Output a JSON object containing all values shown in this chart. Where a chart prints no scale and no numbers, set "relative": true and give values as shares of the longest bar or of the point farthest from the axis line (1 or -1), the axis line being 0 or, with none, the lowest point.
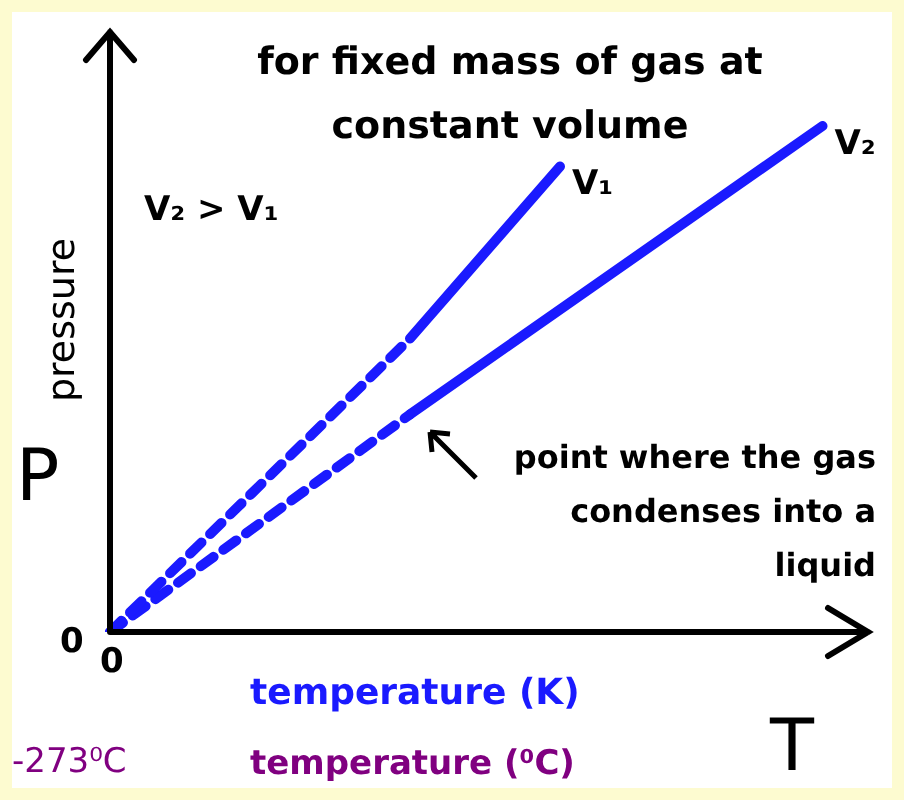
{
  "chart_data": {
    "type": "line",
    "title": "for fixed mass of gas at constant volume",
    "ylabel": "pressure",
    "xlabel": "temperature (K)",
    "relative": true,
    "legend": false,
    "marker": "none",
    "categories": [
      null,
      null,
      null,
      null,
      null,
      null,
      null,
      null,
      null,
      null,
      null,
      null,
      null,
      null,
      null,
      null,
      null,
      null,
      null,
      null,
      null
    ],
    "series": [
      {
        "color": "#1a1aff",
        "line_style": "dashed",
        "values": [
          0,
          null,
          null,
          null,
          null,
          null,
          null,
          null,
          0.58,
          null,
          null,
          null,
          null,
          null,
          null,
          null,
          null,
          null,
          null,
          null,
          null
        ]
      },
      {
        "name": "V₁",
        "color": "#1a1aff",
        "line_style": "solid",
        "values": [
          null,
          null,
          null,
          null,
          null,
          null,
          null,
          null,
          0.58,
          null,
          null,
          null,
          0.92,
          null,
          null,
          null,
          null,
          null,
          null,
          null,
          null
        ]
      },
      {
        "color": "#1a1aff",
        "line_style": "dashed",
        "values": [
          0,
          null,
          null,
          null,
          null,
          null,
          null,
          null,
          0.43,
          null,
          null,
          null,
          null,
          null,
          null,
          null,
          null,
          null,
          null,
          null,
          null
        ]
      },
      {
        "name": "V₂",
        "color": "#1a1aff",
        "line_style": "solid",
        "values": [
          null,
          null,
          null,
          null,
          null,
          null,
          null,
          null,
          0.43,
          null,
          null,
          null,
          null,
          null,
          null,
          null,
          null,
          null,
          null,
          1,
          null
        ]
      }
    ],
    "annotations": [
      "V₂ > V₁",
      "P",
      "T",
      "0",
      "temperature (⁰C)",
      "-273⁰C",
      "0",
      "point where the gas condenses into a liquid"
    ]
  }
}
